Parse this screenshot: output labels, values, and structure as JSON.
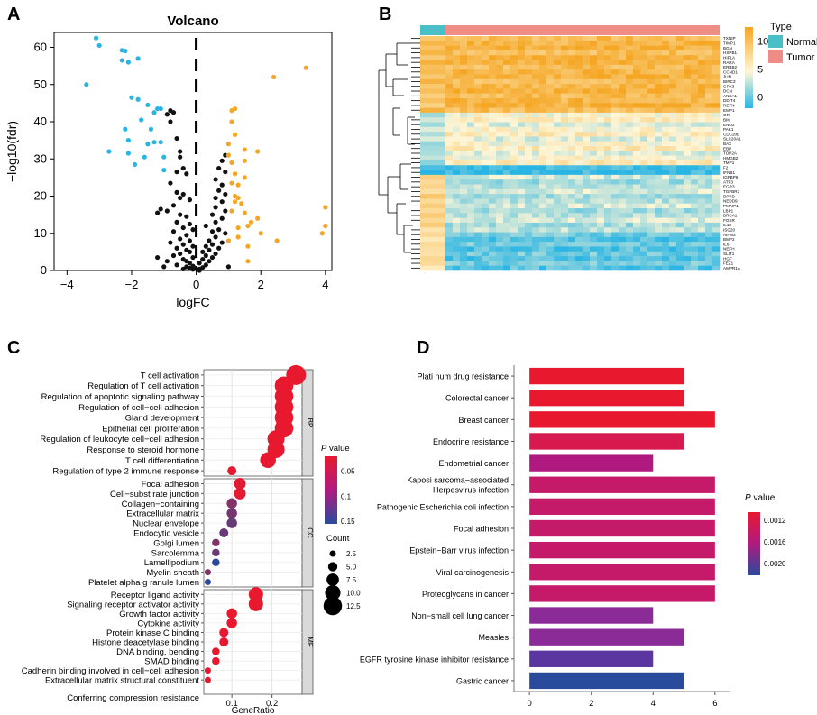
{
  "panel_labels": [
    "A",
    "B",
    "C",
    "D"
  ],
  "chart_data": [
    {
      "id": "A",
      "type": "scatter",
      "title": "Volcano",
      "xlabel": "logFC",
      "ylabel": "−log10(fdr)",
      "xlim": [
        -4.4,
        4.2
      ],
      "ylim": [
        0,
        64
      ],
      "xticks": [
        -4,
        -2,
        0,
        2,
        4
      ],
      "yticks": [
        0,
        10,
        20,
        30,
        40,
        50,
        60
      ],
      "colors": {
        "down": "#29b5e3",
        "ns": "#111111",
        "up": "#f5a623"
      },
      "series": [
        {
          "name": "down",
          "points": [
            [
              -3.1,
              62.5
            ],
            [
              -3.0,
              60.5
            ],
            [
              -2.3,
              59.2
            ],
            [
              -2.2,
              59.0
            ],
            [
              -2.3,
              56.5
            ],
            [
              -2.1,
              56.0
            ],
            [
              -1.8,
              57.0
            ],
            [
              -3.4,
              50.0
            ],
            [
              -2.0,
              46.5
            ],
            [
              -1.8,
              46.0
            ],
            [
              -1.5,
              44.5
            ],
            [
              -1.2,
              43.5
            ],
            [
              -1.1,
              43.5
            ],
            [
              -1.3,
              42.5
            ],
            [
              -1.7,
              40.5
            ],
            [
              -2.2,
              38.0
            ],
            [
              -1.4,
              38.0
            ],
            [
              -2.1,
              35.0
            ],
            [
              -1.3,
              34.5
            ],
            [
              -1.1,
              34.5
            ],
            [
              -1.5,
              34.0
            ],
            [
              -2.1,
              31.5
            ],
            [
              -2.7,
              32.0
            ],
            [
              -1.6,
              30.5
            ],
            [
              -1.0,
              30.5
            ],
            [
              -1.9,
              28.5
            ],
            [
              -1.0,
              27.0
            ]
          ]
        },
        {
          "name": "ns",
          "points": [
            [
              -0.8,
              43.0
            ],
            [
              -0.7,
              42.5
            ],
            [
              -0.9,
              42.0
            ],
            [
              -0.8,
              40.0
            ],
            [
              -0.6,
              35.5
            ],
            [
              -0.5,
              32.0
            ],
            [
              -0.5,
              30.5
            ],
            [
              -0.4,
              27.5
            ],
            [
              -0.6,
              26.5
            ],
            [
              -0.3,
              26.0
            ],
            [
              -0.8,
              23.5
            ],
            [
              -0.6,
              21.0
            ],
            [
              -0.4,
              20.5
            ],
            [
              -0.5,
              19.5
            ],
            [
              -0.2,
              19.0
            ],
            [
              -0.7,
              17.5
            ],
            [
              -1.1,
              16.5
            ],
            [
              -0.9,
              16.0
            ],
            [
              -1.2,
              15.5
            ],
            [
              -0.5,
              15.0
            ],
            [
              -0.3,
              14.5
            ],
            [
              -0.6,
              13.0
            ],
            [
              -0.2,
              12.5
            ],
            [
              -0.4,
              11.5
            ],
            [
              -0.1,
              11.0
            ],
            [
              -0.7,
              10.5
            ],
            [
              -0.3,
              9.5
            ],
            [
              -0.5,
              8.5
            ],
            [
              -0.2,
              8.0
            ],
            [
              -0.8,
              7.5
            ],
            [
              -0.4,
              7.0
            ],
            [
              -0.1,
              6.5
            ],
            [
              -0.6,
              6.0
            ],
            [
              -0.3,
              5.5
            ],
            [
              -0.2,
              5.0
            ],
            [
              -0.5,
              4.5
            ],
            [
              -0.7,
              4.0
            ],
            [
              -0.1,
              3.5
            ],
            [
              -0.4,
              3.0
            ],
            [
              -0.3,
              2.5
            ],
            [
              -0.2,
              2.0
            ],
            [
              -0.6,
              1.5
            ],
            [
              -0.1,
              1.2
            ],
            [
              -0.3,
              1.0
            ],
            [
              -0.2,
              0.6
            ],
            [
              -0.1,
              0.3
            ],
            [
              -0.4,
              0.4
            ],
            [
              0.1,
              0.4
            ],
            [
              0.2,
              0.8
            ],
            [
              0.3,
              1.5
            ],
            [
              0.1,
              2.0
            ],
            [
              0.4,
              2.5
            ],
            [
              0.2,
              3.0
            ],
            [
              0.5,
              3.5
            ],
            [
              0.3,
              4.0
            ],
            [
              0.6,
              4.5
            ],
            [
              0.2,
              5.0
            ],
            [
              0.4,
              5.5
            ],
            [
              0.7,
              6.0
            ],
            [
              0.3,
              6.5
            ],
            [
              0.5,
              7.0
            ],
            [
              0.8,
              7.5
            ],
            [
              0.4,
              8.0
            ],
            [
              0.6,
              9.0
            ],
            [
              0.9,
              10.0
            ],
            [
              0.5,
              10.5
            ],
            [
              0.7,
              11.0
            ],
            [
              0.3,
              12.0
            ],
            [
              0.6,
              13.0
            ],
            [
              0.8,
              14.0
            ],
            [
              0.5,
              15.0
            ],
            [
              0.9,
              16.0
            ],
            [
              0.6,
              17.0
            ],
            [
              0.8,
              18.5
            ],
            [
              0.6,
              19.5
            ],
            [
              0.9,
              20.5
            ],
            [
              0.7,
              21.5
            ],
            [
              0.8,
              23.0
            ],
            [
              0.6,
              24.5
            ],
            [
              0.9,
              26.5
            ],
            [
              0.7,
              27.5
            ],
            [
              0.8,
              29.5
            ],
            [
              0.9,
              31.0
            ],
            [
              -1.0,
              1.0
            ],
            [
              -0.9,
              2.5
            ],
            [
              1.0,
              1.0
            ],
            [
              -1.2,
              3.5
            ],
            [
              0.1,
              -0.0
            ]
          ]
        },
        {
          "name": "up",
          "points": [
            [
              3.4,
              54.5
            ],
            [
              2.4,
              52.0
            ],
            [
              1.1,
              43.0
            ],
            [
              1.2,
              43.5
            ],
            [
              1.1,
              40.0
            ],
            [
              1.2,
              36.5
            ],
            [
              1.0,
              34.0
            ],
            [
              1.5,
              32.5
            ],
            [
              1.9,
              32.0
            ],
            [
              1.0,
              31.0
            ],
            [
              1.1,
              29.0
            ],
            [
              1.5,
              29.5
            ],
            [
              1.2,
              26.0
            ],
            [
              1.5,
              25.0
            ],
            [
              1.1,
              23.5
            ],
            [
              1.3,
              23.0
            ],
            [
              1.2,
              20.0
            ],
            [
              1.3,
              19.5
            ],
            [
              1.2,
              18.5
            ],
            [
              1.4,
              18.0
            ],
            [
              1.1,
              16.0
            ],
            [
              1.5,
              15.5
            ],
            [
              1.7,
              13.0
            ],
            [
              1.9,
              14.0
            ],
            [
              1.6,
              12.0
            ],
            [
              1.3,
              11.5
            ],
            [
              2.0,
              10.0
            ],
            [
              1.0,
              8.0
            ],
            [
              1.3,
              9.0
            ],
            [
              1.6,
              6.5
            ],
            [
              4.0,
              17.0
            ],
            [
              4.0,
              12.0
            ],
            [
              3.9,
              10.0
            ],
            [
              2.5,
              8.0
            ],
            [
              1.6,
              2.5
            ]
          ]
        }
      ],
      "threshold_x": 0
    },
    {
      "id": "B",
      "type": "heatmap",
      "genes": [
        "TXNIP",
        "TIMP1",
        "BGN",
        "HSPB1",
        "HIF1A",
        "RARA",
        "ERBB2",
        "CCND1",
        "JUN",
        "BIRC3",
        "GPX3",
        "DCN",
        "ANXA1",
        "DDIT4",
        "RETN",
        "EMP1",
        "GR",
        "BIK",
        "ENO2",
        "PAK1",
        "CDC20B",
        "SLC20A1",
        "BAX",
        "EBP",
        "TOP2A",
        "HMGB2",
        "TMP1",
        "F2",
        "IFNB1",
        "IGFBP6",
        "ATF3",
        "EGR3",
        "TGFBR3",
        "DPYD",
        "NEDD9",
        "PMAIP1",
        "LBP1",
        "BRCA1",
        "FOXR",
        "IL18",
        "ISG20",
        "AIFM3",
        "BMP2",
        "IL6",
        "NEFH",
        "SLIT1",
        "HGF",
        "FEZ1",
        "AMPR1A"
      ],
      "groups": [
        "Normal",
        "Tumor"
      ],
      "legend_title": "Type",
      "scale_ticks": [
        10,
        5,
        0
      ],
      "scale_range": [
        -2,
        12
      ],
      "colors": {
        "high": "#f5a623",
        "mid": "#fff6d6",
        "low": "#29b5e3",
        "normal": "#49bfc8",
        "tumor": "#f08c86"
      }
    },
    {
      "id": "C",
      "type": "dot",
      "xlabel": "GeneRatio",
      "xticks": [
        0.1,
        0.2
      ],
      "xlim": [
        0.03,
        0.275
      ],
      "color_legend_title_italic": "P",
      "color_legend_title_rest": " value",
      "color_ticks": [
        0.05,
        0.1,
        0.15
      ],
      "size_legend_title": "Count",
      "size_ticks": [
        "2.5",
        "5.0",
        "7.5",
        "10.0",
        "12.5"
      ],
      "facets": [
        {
          "name": "BP",
          "terms": [
            {
              "term": "T cell activation",
              "ratio": 0.26,
              "count": 12,
              "p": 0.0
            },
            {
              "term": "Regulation of T cell activation",
              "ratio": 0.23,
              "count": 11,
              "p": 0.0
            },
            {
              "term": "Regulation of apoptotic signaling pathway",
              "ratio": 0.23,
              "count": 11,
              "p": 0.0
            },
            {
              "term": "Regulation of cell−cell adhesion",
              "ratio": 0.23,
              "count": 11,
              "p": 0.0
            },
            {
              "term": "Gland development",
              "ratio": 0.23,
              "count": 11,
              "p": 0.0
            },
            {
              "term": "Epithelial cell proliferation",
              "ratio": 0.23,
              "count": 11,
              "p": 0.0
            },
            {
              "term": "Regulation of leukocyte cell−cell adhesion",
              "ratio": 0.21,
              "count": 10,
              "p": 0.0
            },
            {
              "term": "Response to steroid hormone",
              "ratio": 0.21,
              "count": 10,
              "p": 0.0
            },
            {
              "term": "T cell differentiation",
              "ratio": 0.19,
              "count": 9,
              "p": 0.0
            },
            {
              "term": "Regulation of type 2 immune response",
              "ratio": 0.1,
              "count": 4,
              "p": 0.0
            }
          ]
        },
        {
          "name": "CC",
          "terms": [
            {
              "term": "Focal adhesion",
              "ratio": 0.12,
              "count": 6,
              "p": 0.005
            },
            {
              "term": "Cell−subst rate junction",
              "ratio": 0.12,
              "count": 6,
              "p": 0.005
            },
            {
              "term": "Collagen−containing",
              "ratio": 0.1,
              "count": 5,
              "p": 0.08
            },
            {
              "term": "Extracellular matrix",
              "ratio": 0.1,
              "count": 5,
              "p": 0.09
            },
            {
              "term": "Nuclear envelope",
              "ratio": 0.1,
              "count": 5,
              "p": 0.1
            },
            {
              "term": "Endocytic vesicle",
              "ratio": 0.08,
              "count": 4,
              "p": 0.1
            },
            {
              "term": "Golgi lumen",
              "ratio": 0.06,
              "count": 3,
              "p": 0.08
            },
            {
              "term": "Sarcolemma",
              "ratio": 0.06,
              "count": 3,
              "p": 0.1
            },
            {
              "term": "Lamellipodium",
              "ratio": 0.06,
              "count": 3,
              "p": 0.15
            },
            {
              "term": "Myelin sheath",
              "ratio": 0.04,
              "count": 2,
              "p": 0.08
            },
            {
              "term": "Platelet alpha g ranule lumen",
              "ratio": 0.04,
              "count": 2,
              "p": 0.15
            }
          ]
        },
        {
          "name": "MF",
          "terms": [
            {
              "term": "Receptor ligand activity",
              "ratio": 0.16,
              "count": 8,
              "p": 0.0
            },
            {
              "term": "Signaling receptor activator activity",
              "ratio": 0.16,
              "count": 8,
              "p": 0.0
            },
            {
              "term": "Growth factor activity",
              "ratio": 0.1,
              "count": 5,
              "p": 0.0
            },
            {
              "term": "Cytokine activity",
              "ratio": 0.1,
              "count": 5,
              "p": 0.0
            },
            {
              "term": "Protein kinase C binding",
              "ratio": 0.08,
              "count": 4,
              "p": 0.0
            },
            {
              "term": "Histone deacetylase binding",
              "ratio": 0.08,
              "count": 4,
              "p": 0.0
            },
            {
              "term": "DNA binding, bending",
              "ratio": 0.06,
              "count": 3,
              "p": 0.0
            },
            {
              "term": "SMAD binding",
              "ratio": 0.06,
              "count": 3,
              "p": 0.0
            },
            {
              "term": "Cadherin binding involved in cell−cell adhesion",
              "ratio": 0.04,
              "count": 2,
              "p": 0.0
            },
            {
              "term": "Extracellular matrix structural constituent",
              "ratio": 0.04,
              "count": 2,
              "p": 0.0
            },
            {
              "term": "Conferring compression resistance",
              "ratio": null,
              "count": null,
              "p": null
            }
          ]
        }
      ]
    },
    {
      "id": "D",
      "type": "bar",
      "orientation": "horizontal",
      "xticks": [
        0,
        2,
        4,
        6
      ],
      "xlim": [
        -0.5,
        6.5
      ],
      "color_legend_title_italic": "P",
      "color_legend_title_rest": " value",
      "color_ticks": [
        "0.0012",
        "0.0016",
        "0.0020"
      ],
      "categories": [
        "Plati num drug resistance",
        "Colorectal cancer",
        "Breast cancer",
        "Endocrine resistance",
        "Endometrial cancer",
        "Kaposi sarcoma−associated\nHerpesvirus infection",
        "Pathogenic Escherichia coli infection",
        "Focal adhesion",
        "Epstein−Barr virus infection",
        "Viral carcinogenesis",
        "Proteoglycans in cancer",
        "Non−small cell lung cancer",
        "Measles",
        "EGFR tyrosine kinase inhibitor resistance",
        "Gastric cancer"
      ],
      "values": [
        5,
        5,
        6,
        5,
        4,
        6,
        6,
        6,
        6,
        6,
        6,
        4,
        5,
        4,
        5
      ],
      "colors": [
        "#e8192f",
        "#e8192f",
        "#e8192f",
        "#d8194f",
        "#b01a80",
        "#c51a6a",
        "#c51a6a",
        "#c51a6a",
        "#c51a6a",
        "#c51a6a",
        "#c51a6a",
        "#8a2b97",
        "#8a2b97",
        "#5c36a0",
        "#2a4a9c"
      ]
    }
  ]
}
